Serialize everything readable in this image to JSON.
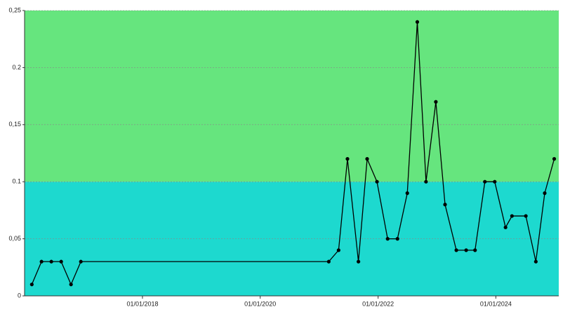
{
  "chart_data": {
    "type": "line",
    "x": [
      "2016-02-15",
      "2016-04-15",
      "2016-06-15",
      "2016-08-15",
      "2016-10-15",
      "2016-12-15",
      "2021-03-01",
      "2021-05-01",
      "2021-06-25",
      "2021-09-01",
      "2021-10-25",
      "2021-12-25",
      "2022-03-01",
      "2022-05-01",
      "2022-07-01",
      "2022-09-01",
      "2022-10-25",
      "2022-12-25",
      "2023-02-20",
      "2023-05-01",
      "2023-07-01",
      "2023-08-25",
      "2023-10-25",
      "2023-12-25",
      "2024-03-01",
      "2024-04-10",
      "2024-07-05",
      "2024-09-05",
      "2024-10-30",
      "2024-12-28"
    ],
    "values": [
      0.01,
      0.03,
      0.03,
      0.03,
      0.01,
      0.03,
      0.03,
      0.04,
      0.12,
      0.03,
      0.12,
      0.1,
      0.05,
      0.05,
      0.09,
      0.24,
      0.1,
      0.17,
      0.08,
      0.04,
      0.04,
      0.04,
      0.1,
      0.1,
      0.06,
      0.07,
      0.07,
      0.03,
      0.09,
      0.12
    ],
    "color": "#000000",
    "xlim": [
      "2016-01-01",
      "2025-01-25"
    ],
    "xticks": [
      {
        "value": "2018-01-01",
        "label": "01/01/2018"
      },
      {
        "value": "2020-01-01",
        "label": "01/01/2020"
      },
      {
        "value": "2022-01-01",
        "label": "01/01/2022"
      },
      {
        "value": "2024-01-01",
        "label": "01/01/2024"
      }
    ],
    "ylim": [
      0,
      0.25
    ],
    "yticks": [
      0,
      {
        "value": 0.05,
        "label": "0,05"
      },
      0.1,
      {
        "value": 0.15,
        "label": "0,15"
      },
      0.2,
      {
        "value": 0.25,
        "label": "0,25"
      }
    ],
    "bands": [
      {
        "from": 0,
        "to": 0.1,
        "color": "#1dd9cf"
      },
      {
        "from": 0.1,
        "to": 0.25,
        "color": "#66e57e"
      }
    ],
    "grid": true
  }
}
